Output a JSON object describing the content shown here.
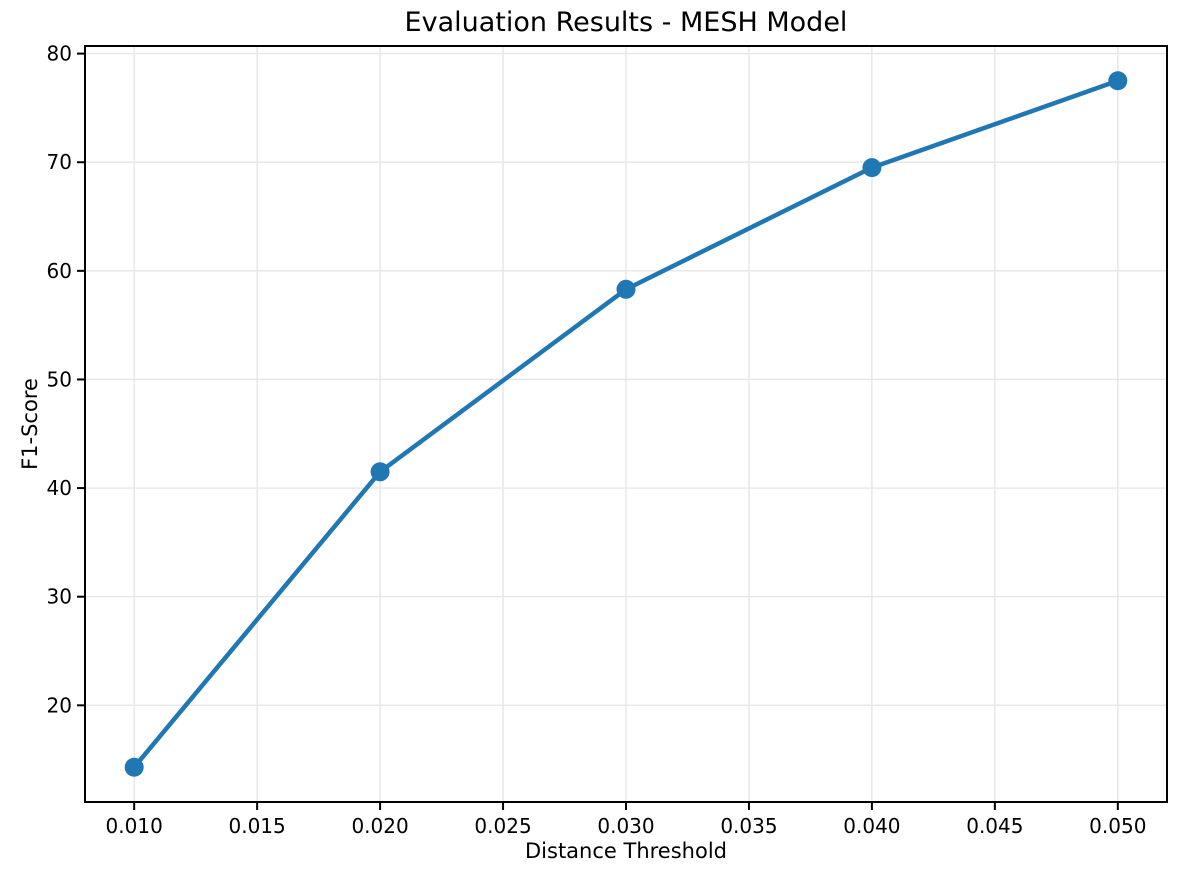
{
  "chart_data": {
    "type": "line",
    "title": "Evaluation Results - MESH Model",
    "xlabel": "Distance Threshold",
    "ylabel": "F1-Score",
    "series": [
      {
        "name": "F1-Score vs Distance Threshold",
        "x": [
          0.01,
          0.02,
          0.03,
          0.04,
          0.05
        ],
        "y": [
          14.3,
          41.5,
          58.3,
          69.5,
          77.5
        ]
      }
    ],
    "xlim": [
      0.008,
      0.052
    ],
    "ylim": [
      11.1,
      80.7
    ],
    "xticks": [
      0.01,
      0.015,
      0.02,
      0.025,
      0.03,
      0.035,
      0.04,
      0.045,
      0.05
    ],
    "xtick_labels": [
      "0.010",
      "0.015",
      "0.020",
      "0.025",
      "0.030",
      "0.035",
      "0.040",
      "0.045",
      "0.050"
    ],
    "yticks": [
      20,
      30,
      40,
      50,
      60,
      70,
      80
    ],
    "ytick_labels": [
      "20",
      "30",
      "40",
      "50",
      "60",
      "70",
      "80"
    ],
    "grid": true,
    "legend": false,
    "marker": "o",
    "colors": {
      "line": "#1f77b4",
      "marker": "#1f77b4",
      "grid": "#e6e6e6",
      "spine": "#000000",
      "text": "#000000",
      "background": "#ffffff"
    }
  }
}
